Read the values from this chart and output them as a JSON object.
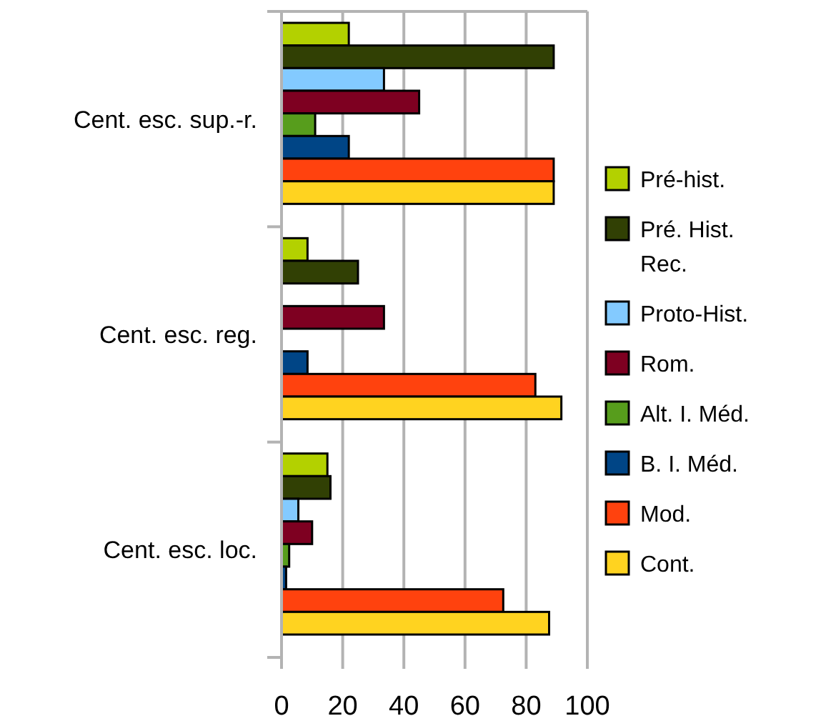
{
  "chart_data": {
    "type": "bar",
    "orientation": "horizontal",
    "categories": [
      "Cent. esc. sup.-r.",
      "Cent. esc. reg.",
      "Cent. esc. loc."
    ],
    "series": [
      {
        "name": "Pré-hist.",
        "color": "#b3d100",
        "values": [
          22,
          8.5,
          15
        ]
      },
      {
        "name": "Pré. Hist. Rec.",
        "color": "#314004",
        "values": [
          89,
          25,
          16
        ]
      },
      {
        "name": "Proto-Hist.",
        "color": "#83caff",
        "values": [
          33.5,
          0,
          5.5
        ]
      },
      {
        "name": "Rom.",
        "color": "#7e0021",
        "values": [
          45,
          33.5,
          10
        ]
      },
      {
        "name": "Alt. I. Méd.",
        "color": "#579d1c",
        "values": [
          11,
          0,
          2.5
        ]
      },
      {
        "name": "B. I. Méd.",
        "color": "#004586",
        "values": [
          22,
          8.5,
          1.5
        ]
      },
      {
        "name": "Mod.",
        "color": "#ff420e",
        "values": [
          89,
          83,
          72.5
        ]
      },
      {
        "name": "Cont.",
        "color": "#ffd320",
        "values": [
          89,
          91.5,
          87.5
        ]
      }
    ],
    "xlim": [
      0,
      100
    ],
    "xticks": [
      0,
      20,
      40,
      60,
      80,
      100
    ],
    "grid": "x",
    "legend": "right"
  }
}
